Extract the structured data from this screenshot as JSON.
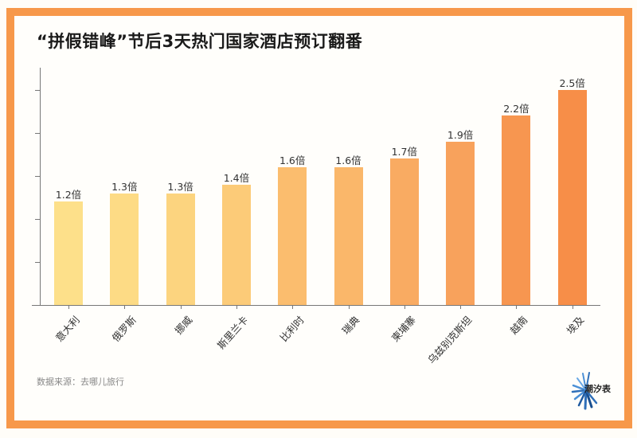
{
  "title": "“拼假错峰”节后3天热门国家酒店预订翻番",
  "source": "数据来源：去哪儿旅行",
  "logo": {
    "text": "潮汐表",
    "icon": "sunburst-logo-icon"
  },
  "colors": {
    "frame": "#f7984a",
    "bars": [
      "#fde08a",
      "#fddb85",
      "#fcd47f",
      "#fccb78",
      "#fbbd6e",
      "#fab76a",
      "#f9ab62",
      "#f8a25c",
      "#f79650",
      "#f78e48"
    ]
  },
  "chart_data": {
    "type": "bar",
    "title": "“拼假错峰”节后3天热门国家酒店预订翻番",
    "xlabel": "",
    "ylabel": "",
    "ylim": [
      0,
      2.7
    ],
    "y_ticks": [
      0.5,
      1.0,
      1.5,
      2.0,
      2.5
    ],
    "y_tick_labels_shown": false,
    "grid": false,
    "categories": [
      "意大利",
      "俄罗斯",
      "挪威",
      "斯里兰卡",
      "比利时",
      "瑞典",
      "柬埔寨",
      "乌兹别克斯坦",
      "越南",
      "埃及"
    ],
    "values": [
      1.2,
      1.3,
      1.3,
      1.4,
      1.6,
      1.6,
      1.7,
      1.9,
      2.2,
      2.5
    ],
    "value_labels": [
      "1.2倍",
      "1.3倍",
      "1.3倍",
      "1.4倍",
      "1.6倍",
      "1.6倍",
      "1.7倍",
      "1.9倍",
      "2.2倍",
      "2.5倍"
    ],
    "unit": "倍",
    "source": "数据来源：去哪儿旅行"
  }
}
